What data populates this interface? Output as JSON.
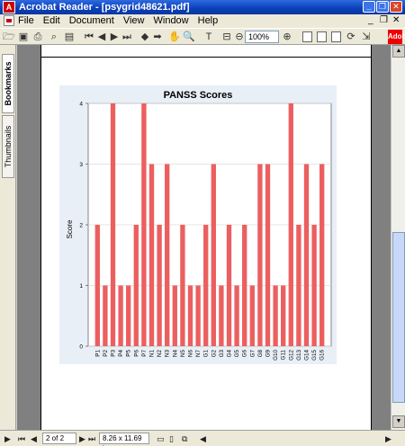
{
  "window": {
    "title": "Acrobat Reader - [psygrid48621.pdf]",
    "minimize": "_",
    "restore": "❐",
    "close": "✕"
  },
  "menu": {
    "items": [
      "File",
      "Edit",
      "Document",
      "View",
      "Window",
      "Help"
    ],
    "doc_controls": [
      "_",
      "❐",
      "✕"
    ]
  },
  "toolbar": {
    "zoom_value": "100%",
    "adobe_label": "Adobe"
  },
  "sidetabs": {
    "bookmarks": "Bookmarks",
    "thumbnails": "Thumbnails"
  },
  "statusbar": {
    "page_indicator": "2 of 2",
    "page_size": "8.26 x 11.69 in"
  },
  "chart_data": {
    "type": "bar",
    "title": "PANSS Scores",
    "ylabel": "Score",
    "xlabel": "",
    "ylim": [
      0,
      4
    ],
    "yticks": [
      0,
      1,
      2,
      3,
      4
    ],
    "grid": true,
    "bar_color": "#ec5f5f",
    "categories": [
      "P1",
      "P2",
      "P3",
      "P4",
      "P5",
      "P6",
      "P7",
      "N1",
      "N2",
      "N3",
      "N4",
      "N5",
      "N6",
      "N7",
      "G1",
      "G2",
      "G3",
      "G4",
      "G5",
      "G6",
      "G7",
      "G8",
      "G9",
      "G10",
      "G11",
      "G12",
      "G13",
      "G14",
      "G15",
      "G16"
    ],
    "values": [
      2,
      1,
      4,
      1,
      1,
      2,
      4,
      3,
      2,
      3,
      1,
      2,
      1,
      1,
      2,
      3,
      1,
      2,
      1,
      2,
      1,
      3,
      3,
      1,
      1,
      4,
      2,
      3,
      2,
      3
    ]
  }
}
